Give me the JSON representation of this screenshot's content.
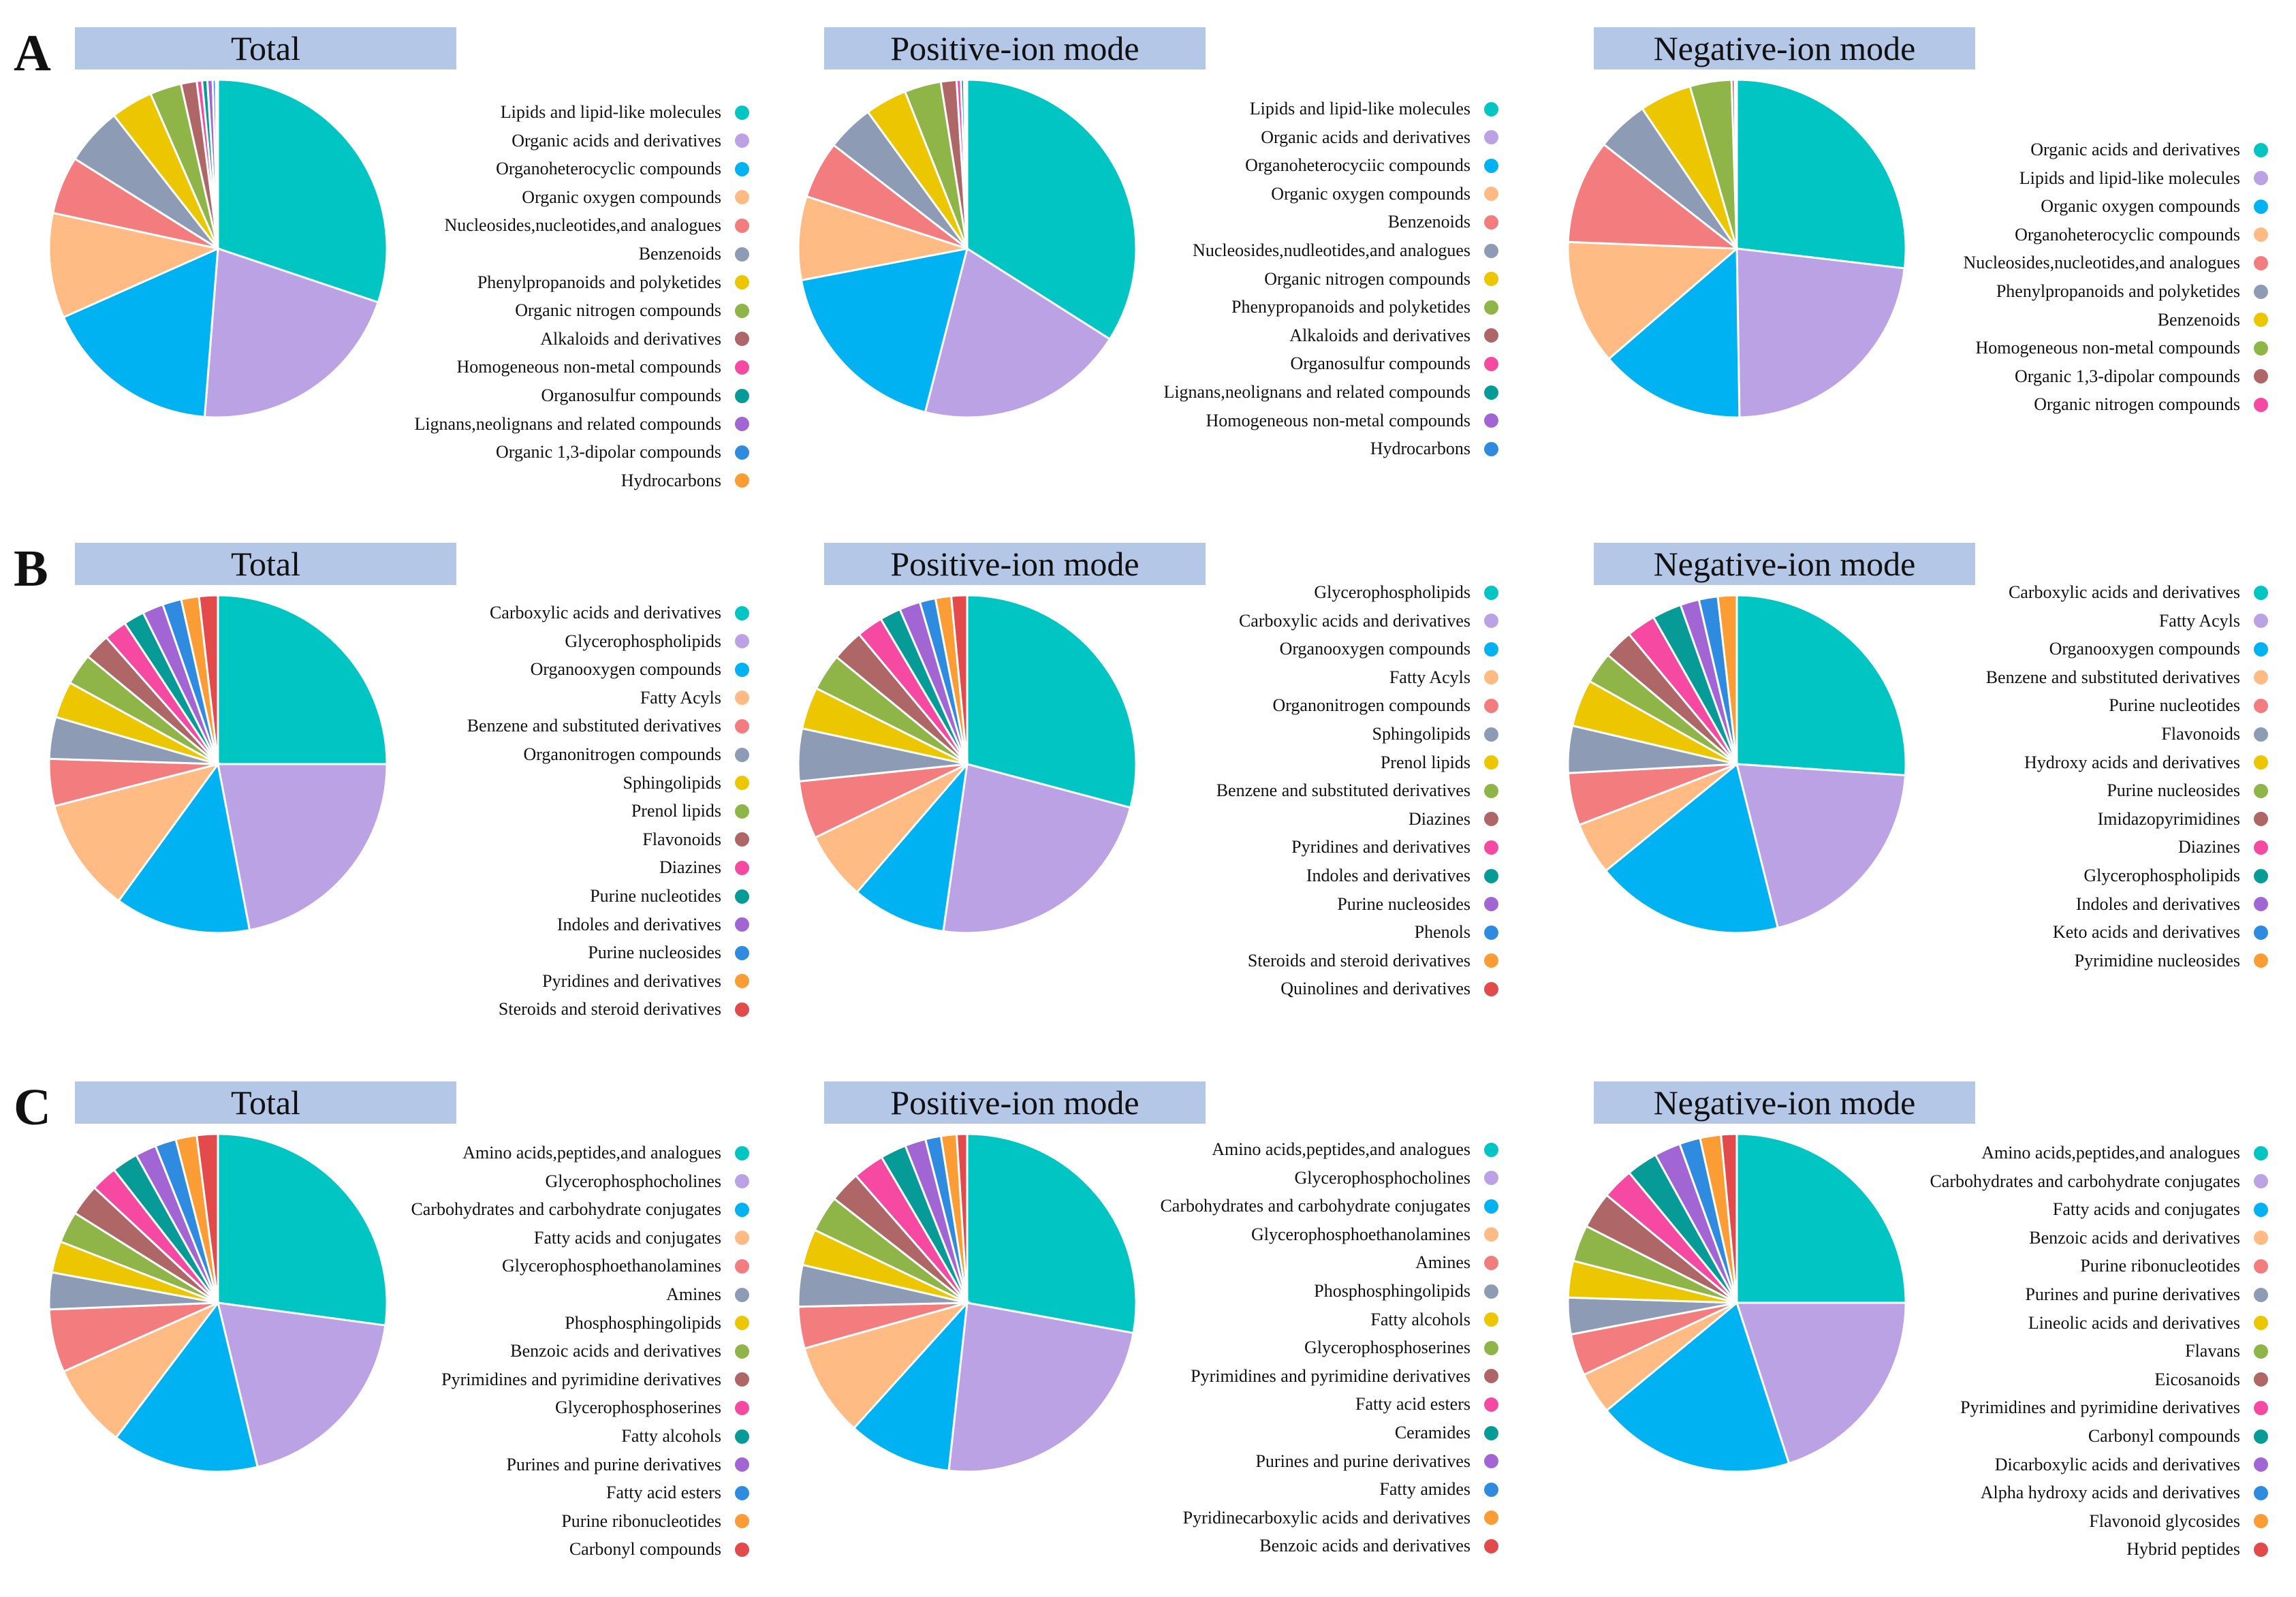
{
  "palette": [
    "#00c5c3",
    "#bba2e4",
    "#00b2f1",
    "#ffbb83",
    "#f37c7f",
    "#8e9bb4",
    "#ecc700",
    "#8fb447",
    "#ae6666",
    "#f64aa2",
    "#079b98",
    "#a166d4",
    "#2f8be0",
    "#fb9c35",
    "#e34a4c"
  ],
  "rows": [
    {
      "letter": "A",
      "panels": [
        {
          "title": "Total",
          "chart_data": {
            "type": "pie",
            "title": "Total",
            "labels": [
              "Lipids and lipid-like molecules",
              "Organic acids and derivatives",
              "Organoheterocyclic compounds",
              "Organic oxygen compounds",
              "Nucleosides,nucleotides,and analogues",
              "Benzenoids",
              "Phenylpropanoids and polyketides",
              "Organic nitrogen compounds",
              "Alkaloids and derivatives",
              "Homogeneous non-metal compounds",
              "Organosulfur compounds",
              "Lignans,neolignans and related compounds",
              "Organic 1,3-dipolar compounds",
              "Hydrocarbons"
            ],
            "values": [
              30,
              21,
              17,
              10,
              5.5,
              5.5,
              4,
              3,
              1.5,
              0.5,
              0.5,
              0.5,
              0.3,
              0.2
            ]
          }
        },
        {
          "title": "Positive-ion mode",
          "chart_data": {
            "type": "pie",
            "title": "Positive-ion mode",
            "labels": [
              "Lipids and lipid-like molecules",
              "Organic acids and derivatives",
              "Organoheterocyciic compounds",
              "Organic oxygen compounds",
              "Benzenoids",
              "Nucleosides,nudleotides,and analogues",
              "Organic nitrogen compounds",
              "Phenypropanoids and polyketides",
              "Alkaloids and derivatives",
              "Organosulfur compounds",
              "Lignans,neolignans and related compounds",
              "Homogeneous non-metal compounds",
              "Hydrocarbons"
            ],
            "values": [
              34,
              20,
              18,
              8,
              5.5,
              4.5,
              4,
              3.5,
              1.5,
              0.4,
              0.3,
              0.2,
              0.1
            ]
          }
        },
        {
          "title": "Negative-ion mode",
          "chart_data": {
            "type": "pie",
            "title": "Negative-ion mode",
            "labels": [
              "Organic acids and derivatives",
              "Lipids and lipid-like molecules",
              "Organic oxygen compounds",
              "Organoheterocyclic compounds",
              "Nucleosides,nucleotides,and analogues",
              "Phenylpropanoids and polyketides",
              "Benzenoids",
              "Homogeneous non-metal compounds",
              "Organic 1,3-dipolar compounds",
              "Organic nitrogen compounds"
            ],
            "values": [
              27,
              23,
              14,
              12,
              10,
              5,
              5,
              4,
              0.3,
              0.2
            ]
          }
        }
      ]
    },
    {
      "letter": "B",
      "panels": [
        {
          "title": "Total",
          "chart_data": {
            "type": "pie",
            "title": "Total",
            "labels": [
              "Carboxylic acids and derivatives",
              "Glycerophospholipids",
              "Organooxygen compounds",
              "Fatty Acyls",
              "Benzene and substituted derivatives",
              "Organonitrogen compounds",
              "Sphingolipids",
              "Prenol lipids",
              "Flavonoids",
              "Diazines",
              "Purine nucleotides",
              "Indoles and derivatives",
              "Purine nucleosides",
              "Pyridines and derivatives",
              "Steroids and steroid derivatives"
            ],
            "values": [
              25,
              22,
              13,
              11,
              4.5,
              4,
              3.5,
              3,
              2.5,
              2.2,
              2,
              2,
              1.8,
              1.7,
              1.8
            ]
          }
        },
        {
          "title": "Positive-ion mode",
          "chart_data": {
            "type": "pie",
            "title": "Positive-ion mode",
            "labels": [
              "Glycerophospholipids",
              "Carboxylic acids and derivatives",
              "Organooxygen compounds",
              "Fatty Acyls",
              "Organonitrogen compounds",
              "Sphingolipids",
              "Prenol lipids",
              "Benzene and substituted derivatives",
              "Diazines",
              "Pyridines and derivatives",
              "Indoles and derivatives",
              "Purine nucleosides",
              "Phenols",
              "Steroids and steroid derivatives",
              "Quinolines and derivatives"
            ],
            "values": [
              29,
              23,
              9,
              6.5,
              5.5,
              5,
              4,
              3.5,
              3,
              2.5,
              2,
              2,
              1.5,
              1.5,
              1.5
            ]
          }
        },
        {
          "title": "Negative-ion mode",
          "chart_data": {
            "type": "pie",
            "title": "Negative-ion mode",
            "labels": [
              "Carboxylic acids and derivatives",
              "Fatty Acyls",
              "Organooxygen compounds",
              "Benzene and substituted derivatives",
              "Purine nucleotides",
              "Flavonoids",
              "Hydroxy acids and derivatives",
              "Purine nucleosides",
              "Imidazopyrimidines",
              "Diazines",
              "Glycerophospholipids",
              "Indoles and derivatives",
              "Keto acids and derivatives",
              "Pyrimidine nucleosides"
            ],
            "values": [
              26,
              20,
              18,
              5,
              5,
              4.5,
              4.5,
              3,
              2.8,
              2.8,
              2.8,
              1.8,
              1.8,
              1.8
            ]
          }
        }
      ]
    },
    {
      "letter": "C",
      "panels": [
        {
          "title": "Total",
          "chart_data": {
            "type": "pie",
            "title": "Total",
            "labels": [
              "Amino acids,peptides,and analogues",
              "Glycerophosphocholines",
              "Carbohydrates and carbohydrate conjugates",
              "Fatty acids and conjugates",
              "Glycerophosphoethanolamines",
              "Amines",
              "Phosphosphingolipids",
              "Benzoic acids and derivatives",
              "Pyrimidines and pyrimidine derivatives",
              "Glycerophosphoserines",
              "Fatty alcohols",
              "Purines and purine derivatives",
              "Fatty acid esters",
              "Purine ribonucleotides",
              "Carbonyl compounds"
            ],
            "values": [
              27,
              19,
              14,
              8,
              6,
              3.5,
              3,
              3,
              3,
              2.5,
              2.5,
              2,
              2,
              2,
              2
            ]
          }
        },
        {
          "title": "Positive-ion mode",
          "chart_data": {
            "type": "pie",
            "title": "Positive-ion mode",
            "labels": [
              "Amino acids,peptides,and analogues",
              "Glycerophosphocholines",
              "Carbohydrates and carbohydrate conjugates",
              "Glycerophosphoethanolamines",
              "Amines",
              "Phosphosphingolipids",
              "Fatty alcohols",
              "Glycerophosphoserines",
              "Pyrimidines and pyrimidine derivatives",
              "Fatty acid esters",
              "Ceramides",
              "Purines and purine derivatives",
              "Fatty amides",
              "Pyridinecarboxylic acids and derivatives",
              "Benzoic acids and derivatives"
            ],
            "values": [
              28,
              24,
              10,
              9,
              4,
              4,
              3.5,
              3.5,
              3,
              3,
              2.5,
              2,
              1.5,
              1.5,
              1
            ]
          }
        },
        {
          "title": "Negative-ion mode",
          "chart_data": {
            "type": "pie",
            "title": "Negative-ion mode",
            "labels": [
              "Amino acids,peptides,and analogues",
              "Carbohydrates and carbohydrate conjugates",
              "Fatty acids and conjugates",
              "Benzoic acids and derivatives",
              "Purine ribonucleotides",
              "Purines and purine derivatives",
              "Lineolic acids and derivatives",
              "Flavans",
              "Eicosanoids",
              "Pyrimidines and pyrimidine derivatives",
              "Carbonyl compounds",
              "Dicarboxylic acids and derivatives",
              "Alpha hydroxy acids and derivatives",
              "Flavonoid glycosides",
              "Hybrid peptides"
            ],
            "values": [
              25,
              20,
              19,
              4,
              4,
              3.5,
              3.5,
              3.5,
              3.5,
              3,
              3,
              2.5,
              2,
              2,
              1.5
            ]
          }
        }
      ]
    }
  ]
}
